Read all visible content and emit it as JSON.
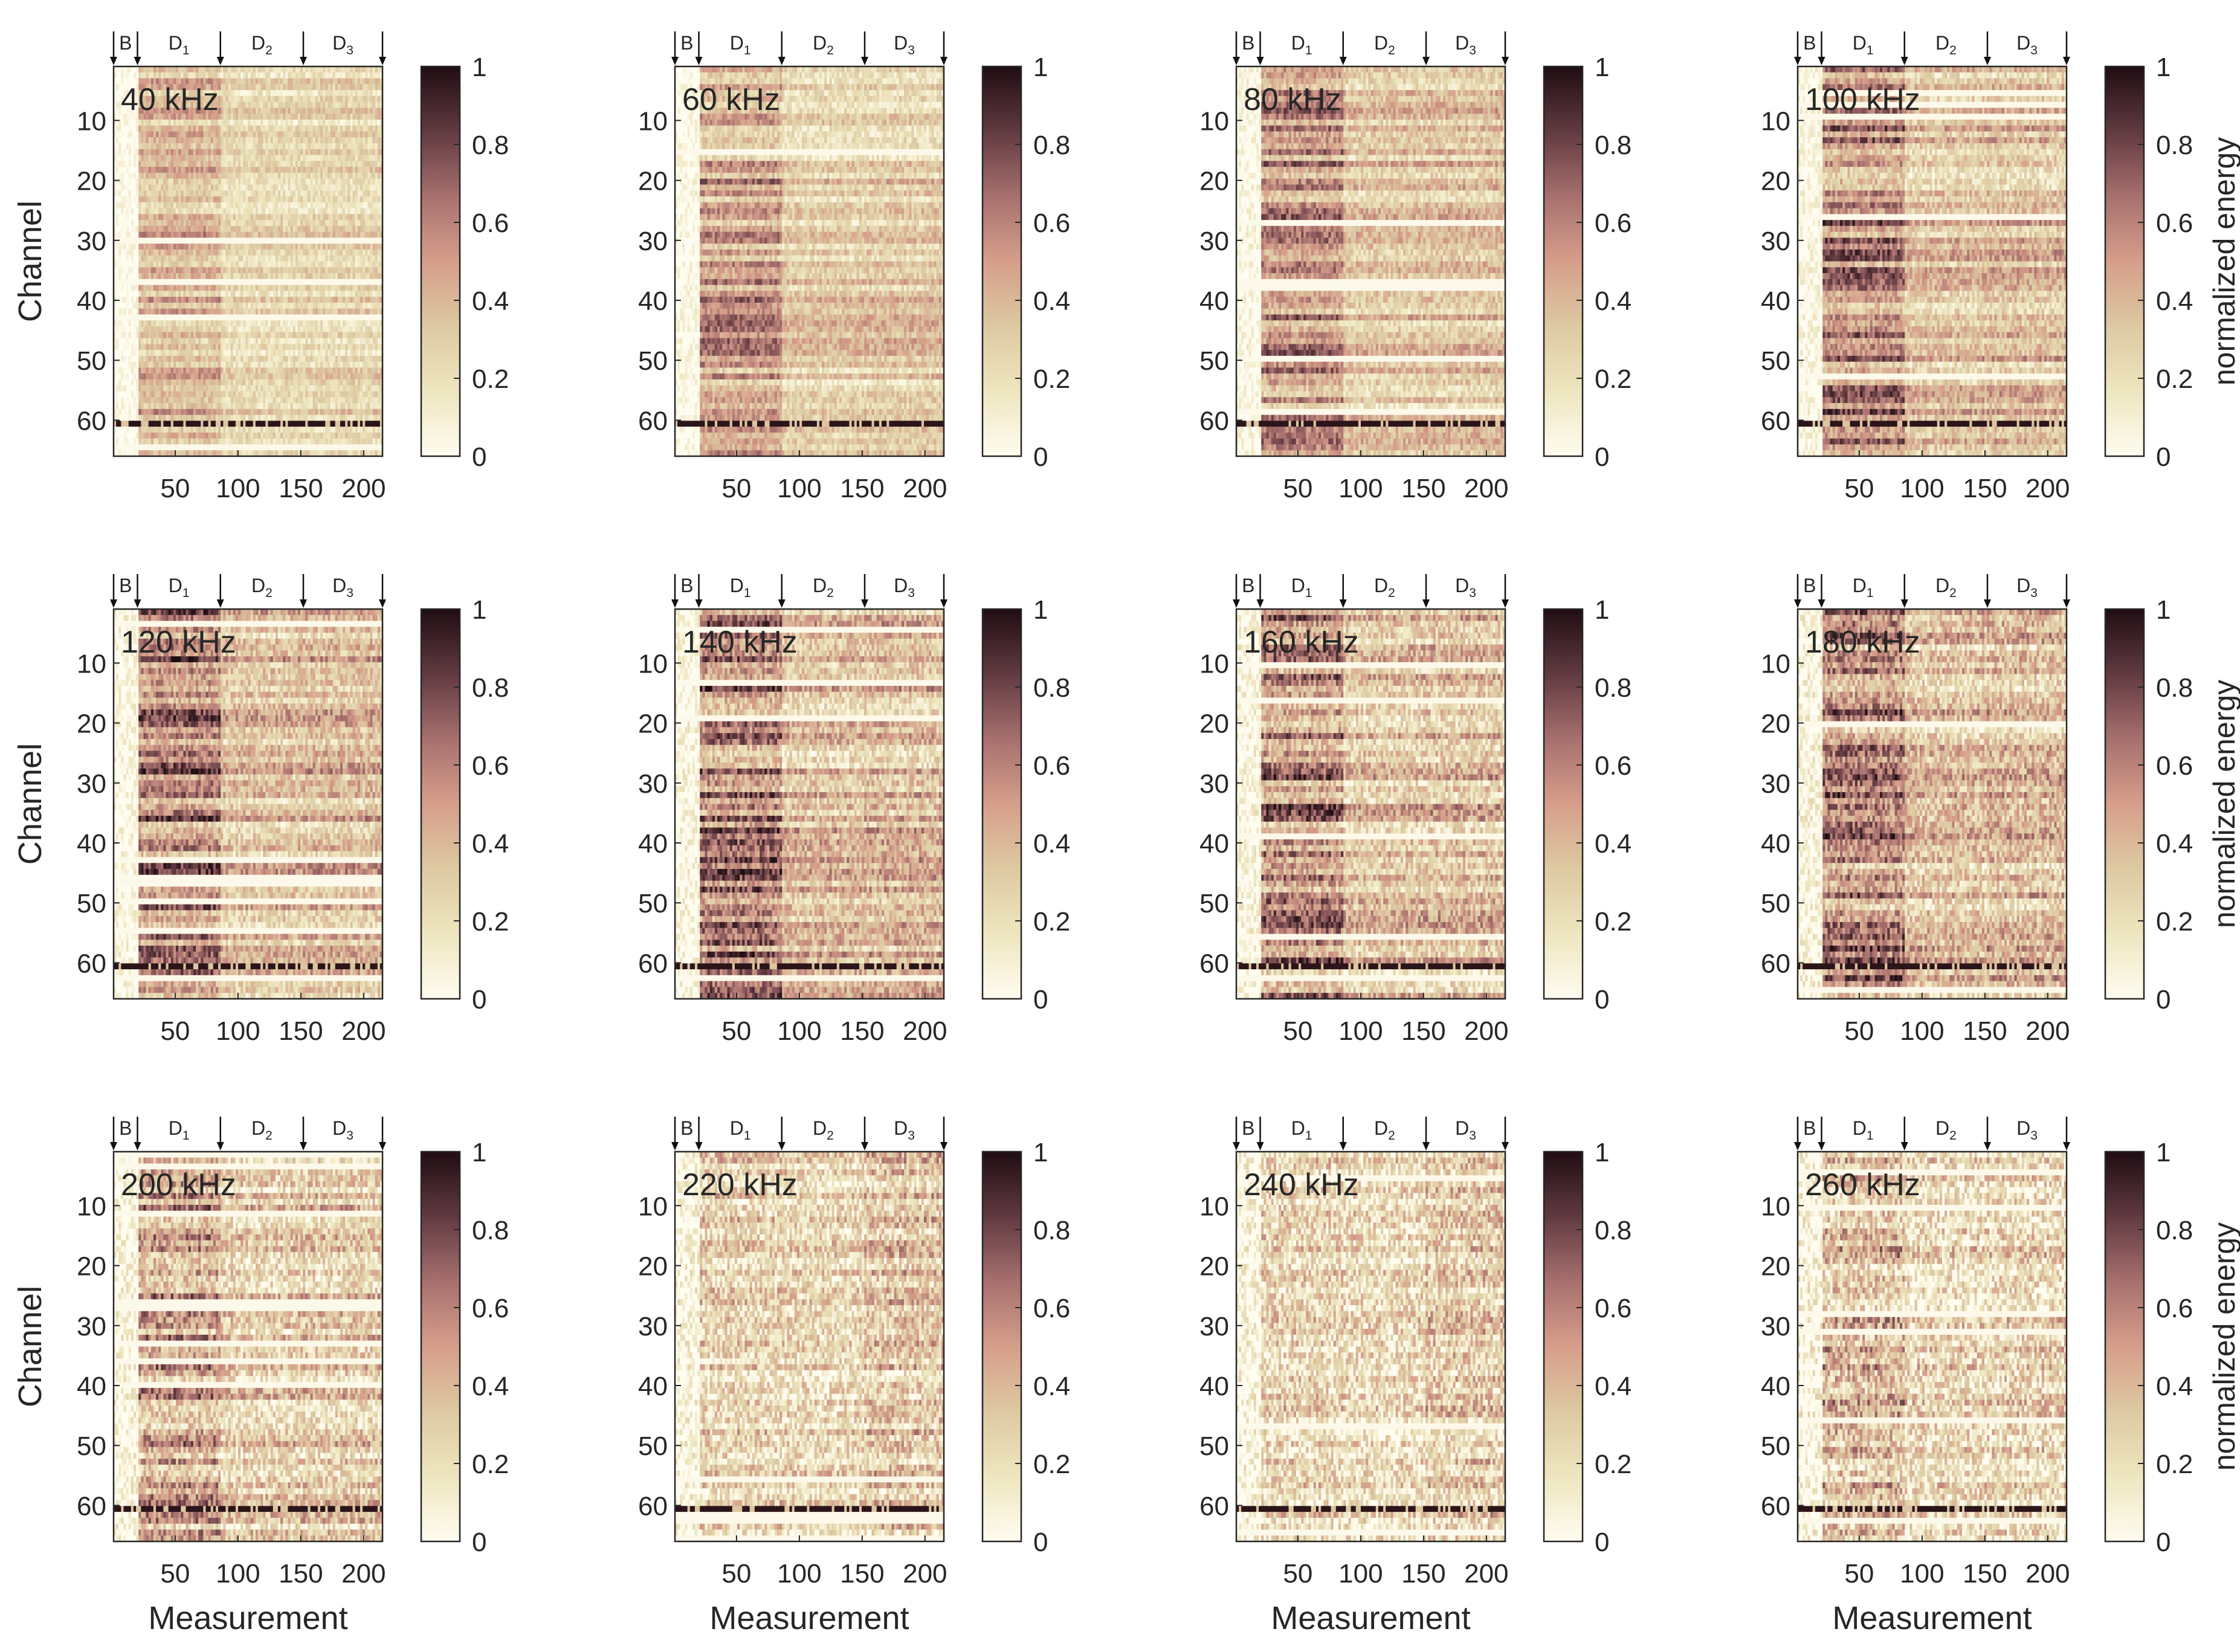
{
  "chart_data": {
    "type": "heatmap",
    "layout": "3 rows x 4 columns grid of heatmaps",
    "xlabel": "Measurement",
    "ylabel": "Channel",
    "colorbar_label": "normalized energy",
    "xlim": [
      1,
      215
    ],
    "ylim": [
      1,
      66
    ],
    "x_ticks": [
      50,
      100,
      150,
      200
    ],
    "y_ticks": [
      10,
      20,
      30,
      40,
      50,
      60
    ],
    "colorbar_ticks": [
      0,
      0.2,
      0.4,
      0.6,
      0.8,
      1
    ],
    "colorbar_tick_labels": [
      "0",
      "0.2",
      "0.4",
      "0.6",
      "0.8",
      "1"
    ],
    "colormap": [
      "#fffcf0",
      "#eee6bf",
      "#ddc9a2",
      "#d69e8a",
      "#a7706e",
      "#613a41",
      "#1f0d12"
    ],
    "phase_boundaries": [
      1,
      20,
      86,
      152,
      215
    ],
    "phase_labels": [
      "B",
      "D",
      "D",
      "D"
    ],
    "phase_subscripts": [
      "",
      "1",
      "2",
      "3"
    ],
    "panels": [
      {
        "label": "40 kHz",
        "dominant_phase": "D1",
        "mean_energy": 0.3,
        "dead_channel": 61
      },
      {
        "label": "60 kHz",
        "dominant_phase": "D1",
        "mean_energy": 0.36,
        "dead_channel": 61
      },
      {
        "label": "80 kHz",
        "dominant_phase": "D1",
        "mean_energy": 0.4,
        "dead_channel": 61
      },
      {
        "label": "100 kHz",
        "dominant_phase": "D1",
        "mean_energy": 0.42,
        "dead_channel": 61
      },
      {
        "label": "120 kHz",
        "dominant_phase": "D1",
        "mean_energy": 0.45,
        "dead_channel": 61
      },
      {
        "label": "140 kHz",
        "dominant_phase": "D1",
        "mean_energy": 0.43,
        "dead_channel": 61
      },
      {
        "label": "160 kHz",
        "dominant_phase": "D1",
        "mean_energy": 0.42,
        "dead_channel": 61
      },
      {
        "label": "180 kHz",
        "dominant_phase": "D1",
        "mean_energy": 0.41,
        "dead_channel": 61
      },
      {
        "label": "200 kHz",
        "dominant_phase": "D1",
        "mean_energy": 0.35,
        "dead_channel": 61
      },
      {
        "label": "220 kHz",
        "dominant_phase": "D3",
        "mean_energy": 0.28,
        "dead_channel": 61
      },
      {
        "label": "240 kHz",
        "dominant_phase": "D3",
        "mean_energy": 0.26,
        "dead_channel": 61
      },
      {
        "label": "260 kHz",
        "dominant_phase": "D1",
        "mean_energy": 0.27,
        "dead_channel": 61
      }
    ]
  }
}
